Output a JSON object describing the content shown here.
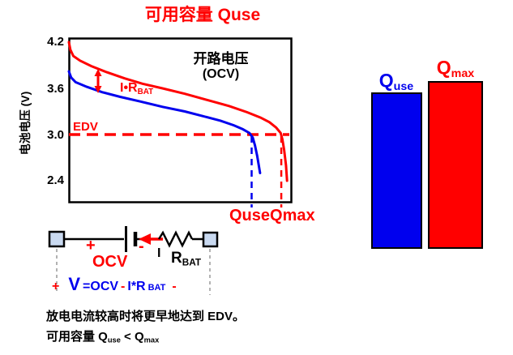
{
  "title": "可用容量 Quse",
  "chart_data": {
    "type": "line",
    "ylabel": "电池电压 (V)",
    "xlabel": "",
    "yticks": [
      "4.2",
      "3.6",
      "3.0",
      "2.4"
    ],
    "ylim": [
      2.2,
      4.3
    ],
    "grid": false,
    "edv_voltage": 3.0,
    "annotations": {
      "ocv_label_line1": "开路电压",
      "ocv_label_line2": "(OCV)",
      "edv_label": "EDV",
      "ir_drop_base": "I•R",
      "ir_drop_sub": "BAT",
      "q_use_label": "Quse",
      "q_max_label": "Qmax"
    },
    "series": [
      {
        "name": "OCV curve",
        "color": "#ff0000",
        "points": [
          [
            0,
            4.2
          ],
          [
            0.7,
            4.1
          ],
          [
            2,
            4.02
          ],
          [
            5,
            3.96
          ],
          [
            10,
            3.89
          ],
          [
            17,
            3.81
          ],
          [
            25,
            3.73
          ],
          [
            33,
            3.66
          ],
          [
            42,
            3.6
          ],
          [
            52,
            3.53
          ],
          [
            62,
            3.45
          ],
          [
            72,
            3.37
          ],
          [
            80,
            3.29
          ],
          [
            86,
            3.22
          ],
          [
            90,
            3.16
          ],
          [
            93,
            3.09
          ],
          [
            95,
            3.02
          ],
          [
            95.8,
            2.94
          ],
          [
            96.6,
            2.8
          ],
          [
            97.4,
            2.6
          ],
          [
            97.9,
            2.4
          ]
        ]
      },
      {
        "name": "Voltage under load (V = OCV - I*RBAT)",
        "color": "#0000ee",
        "points": [
          [
            0,
            3.82
          ],
          [
            1,
            3.74
          ],
          [
            3,
            3.68
          ],
          [
            8,
            3.62
          ],
          [
            15,
            3.55
          ],
          [
            23,
            3.49
          ],
          [
            32,
            3.43
          ],
          [
            42,
            3.36
          ],
          [
            52,
            3.3
          ],
          [
            60,
            3.24
          ],
          [
            68,
            3.18
          ],
          [
            74,
            3.12
          ],
          [
            78,
            3.07
          ],
          [
            81,
            3.02
          ],
          [
            82.5,
            2.96
          ],
          [
            83.5,
            2.86
          ],
          [
            84.5,
            2.72
          ],
          [
            85.8,
            2.5
          ]
        ]
      }
    ],
    "markers": {
      "q_use_pct": 82,
      "q_max_pct": 95.3
    }
  },
  "bar_chart": {
    "type": "bar",
    "bars": [
      {
        "label_base": "Q",
        "label_sub": "use",
        "color": "#0000ee",
        "height_pct": 93
      },
      {
        "label_base": "Q",
        "label_sub": "max",
        "color": "#ff0000",
        "height_pct": 100
      }
    ]
  },
  "circuit": {
    "plus": "+",
    "minus": "-",
    "ocv_label": "OCV",
    "current_label": "I",
    "resistor_base": "R",
    "resistor_sub": "BAT",
    "equation": {
      "plus": "+",
      "v": "V",
      "eq_ocv": "=OCV",
      "minus1": "-",
      "ir": "I*R",
      "ir_sub": "BAT",
      "minus2": "-"
    }
  },
  "footer": {
    "line1": "放电电流较高时将更早地达到 EDV。",
    "line2": {
      "prefix": "可用容量 ",
      "q1_base": "Q",
      "q1_sub": "use",
      "lt": " < ",
      "q2_base": "Q",
      "q2_sub": "max"
    }
  }
}
